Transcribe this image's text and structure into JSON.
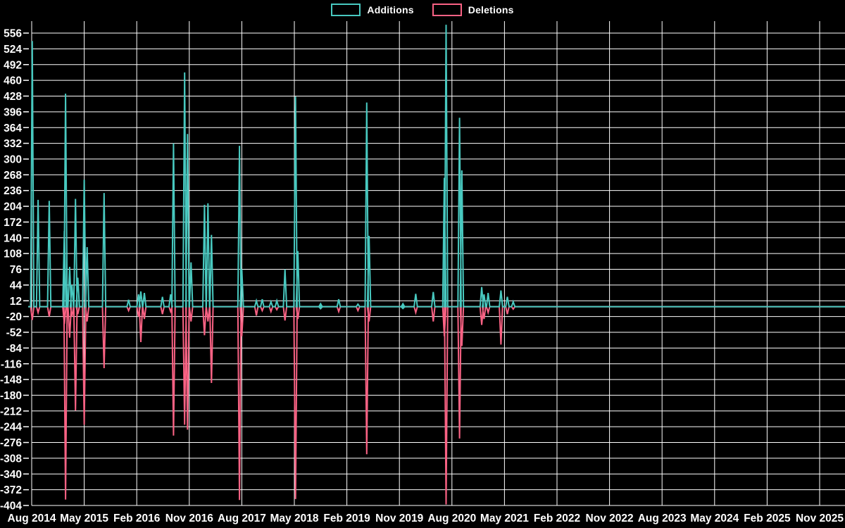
{
  "legend": {
    "additions_label": "Additions",
    "deletions_label": "Deletions"
  },
  "colors": {
    "background": "#000000",
    "grid": "#ffffff",
    "text": "#ffffff",
    "additions": "#48c9c0",
    "deletions": "#fa6284"
  },
  "chart_data": {
    "type": "line",
    "title": "",
    "legend_position": "top-center",
    "grid": true,
    "x_axis": {
      "labels": [
        "Aug 2014",
        "May 2015",
        "Feb 2016",
        "Nov 2016",
        "Aug 2017",
        "May 2018",
        "Feb 2019",
        "Nov 2019",
        "Aug 2020",
        "May 2021",
        "Feb 2022",
        "Nov 2022",
        "Aug 2023",
        "May 2024",
        "Feb 2025",
        "Nov 2025"
      ],
      "months_between_labels": 9
    },
    "y_axis": {
      "max": 556,
      "min": -404,
      "step": 32,
      "ticks": [
        556,
        524,
        492,
        460,
        428,
        396,
        364,
        332,
        300,
        268,
        236,
        204,
        172,
        140,
        108,
        76,
        44,
        12,
        -20,
        -52,
        -84,
        -116,
        -148,
        -180,
        -212,
        -244,
        -276,
        -308,
        -340,
        -372,
        -404
      ]
    },
    "series": [
      {
        "name": "Additions",
        "color": "#48c9c0",
        "key": "a"
      },
      {
        "name": "Deletions",
        "color": "#fa6284",
        "key": "d"
      }
    ],
    "points_note": "m = months after Aug 2014; a = additions spike value; d = deletions spike value; baseline 0 elsewhere through Nov 2025",
    "points": [
      {
        "m": 0.1,
        "a": 540,
        "d": -27
      },
      {
        "m": 1.1,
        "a": 217,
        "d": -12
      },
      {
        "m": 3.0,
        "a": 215,
        "d": -20
      },
      {
        "m": 5.6,
        "a": 154,
        "d": -35
      },
      {
        "m": 5.8,
        "a": 433,
        "d": -392
      },
      {
        "m": 6.5,
        "a": 81,
        "d": -63
      },
      {
        "m": 6.9,
        "a": 44,
        "d": -20
      },
      {
        "m": 7.5,
        "a": 219,
        "d": -211
      },
      {
        "m": 7.9,
        "a": 59,
        "d": -15
      },
      {
        "m": 9.0,
        "a": 258,
        "d": -240
      },
      {
        "m": 9.5,
        "a": 121,
        "d": -30
      },
      {
        "m": 12.4,
        "a": 231,
        "d": -125
      },
      {
        "m": 16.6,
        "a": 14,
        "d": -8
      },
      {
        "m": 18.3,
        "a": 25,
        "d": -20
      },
      {
        "m": 18.7,
        "a": 31,
        "d": -72
      },
      {
        "m": 19.3,
        "a": 28,
        "d": -25
      },
      {
        "m": 22.4,
        "a": 20,
        "d": -15
      },
      {
        "m": 23.8,
        "a": 25,
        "d": -10
      },
      {
        "m": 24.3,
        "a": 332,
        "d": -262
      },
      {
        "m": 26.2,
        "a": 476,
        "d": -240
      },
      {
        "m": 26.7,
        "a": 351,
        "d": -250
      },
      {
        "m": 27.3,
        "a": 90,
        "d": -30
      },
      {
        "m": 29.6,
        "a": 207,
        "d": -58
      },
      {
        "m": 30.2,
        "a": 210,
        "d": -30
      },
      {
        "m": 30.8,
        "a": 146,
        "d": -155
      },
      {
        "m": 35.6,
        "a": 327,
        "d": -393
      },
      {
        "m": 36.0,
        "a": 76,
        "d": -60
      },
      {
        "m": 38.5,
        "a": 12,
        "d": -18
      },
      {
        "m": 39.5,
        "a": 15,
        "d": -8
      },
      {
        "m": 41.0,
        "a": 10,
        "d": -10
      },
      {
        "m": 42.0,
        "a": 12,
        "d": -6
      },
      {
        "m": 43.4,
        "a": 76,
        "d": -28
      },
      {
        "m": 45.2,
        "a": 427,
        "d": -391
      },
      {
        "m": 45.6,
        "a": 113,
        "d": -25
      },
      {
        "m": 49.5,
        "a": 6,
        "d": -4
      },
      {
        "m": 52.6,
        "a": 15,
        "d": -10
      },
      {
        "m": 55.9,
        "a": 5,
        "d": -8
      },
      {
        "m": 57.4,
        "a": 415,
        "d": -300
      },
      {
        "m": 57.8,
        "a": 144,
        "d": -30
      },
      {
        "m": 63.6,
        "a": 6,
        "d": 0
      },
      {
        "m": 65.8,
        "a": 26,
        "d": -12
      },
      {
        "m": 68.8,
        "a": 30,
        "d": -30
      },
      {
        "m": 70.7,
        "a": 262,
        "d": -60
      },
      {
        "m": 71.0,
        "a": 573,
        "d": -402
      },
      {
        "m": 73.3,
        "a": 384,
        "d": -268
      },
      {
        "m": 73.7,
        "a": 277,
        "d": -80
      },
      {
        "m": 77.1,
        "a": 40,
        "d": -37
      },
      {
        "m": 77.5,
        "a": 25,
        "d": -25
      },
      {
        "m": 78.2,
        "a": 28,
        "d": -12
      },
      {
        "m": 80.4,
        "a": 33,
        "d": -77
      },
      {
        "m": 81.5,
        "a": 20,
        "d": -15
      },
      {
        "m": 82.5,
        "a": 10,
        "d": -5
      }
    ],
    "lone_markers": [
      {
        "m": 49.5,
        "series": "Additions"
      },
      {
        "m": 63.6,
        "series": "Additions"
      }
    ]
  }
}
